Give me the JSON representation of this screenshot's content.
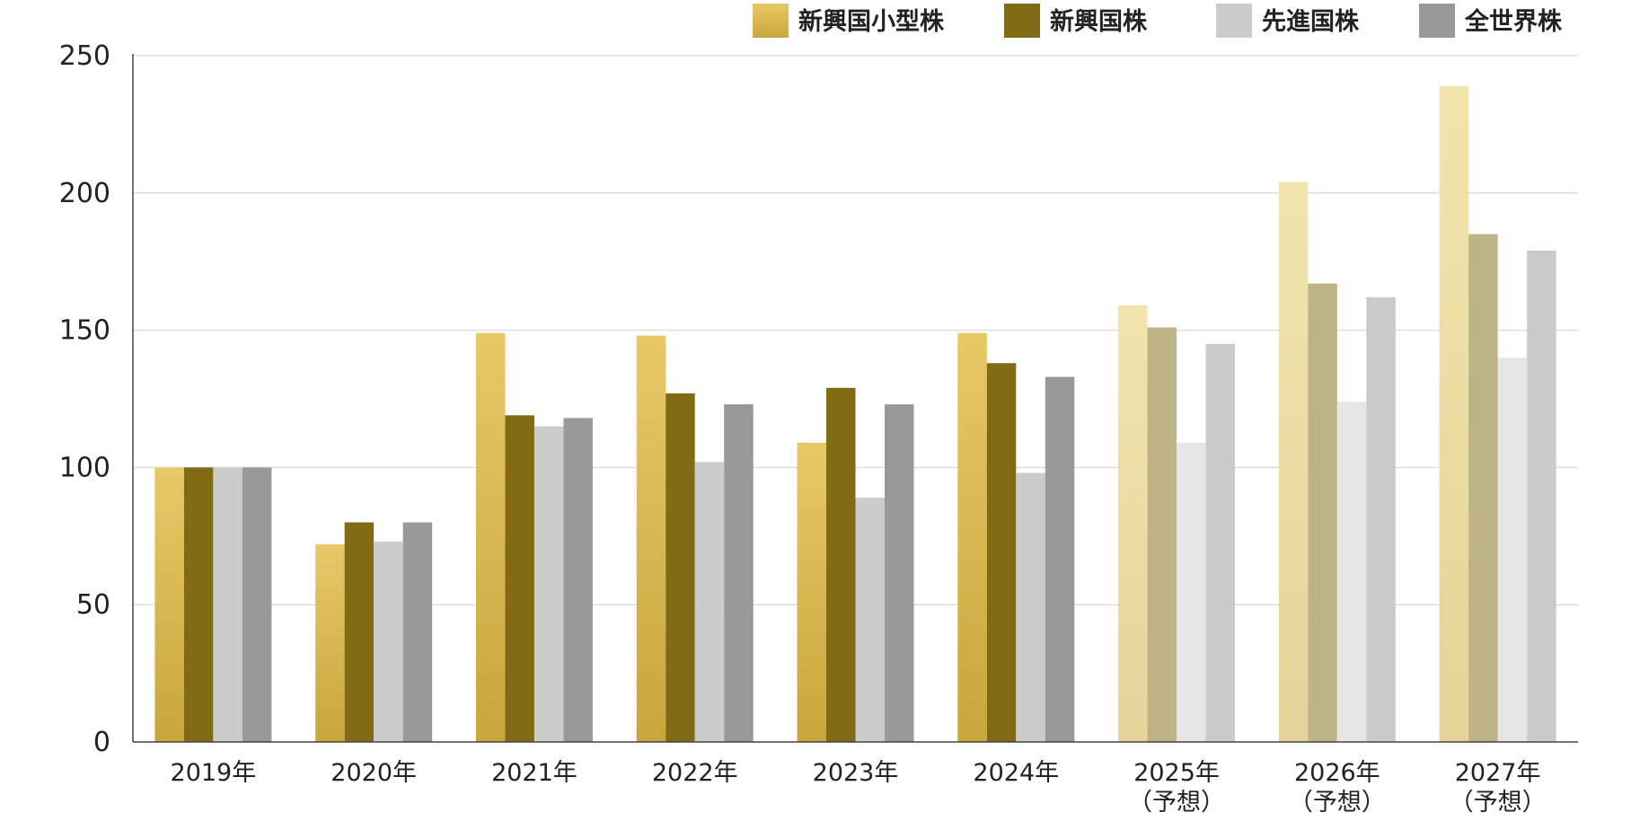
{
  "chart_data": {
    "type": "bar",
    "categories": [
      [
        "2019年"
      ],
      [
        "2020年"
      ],
      [
        "2021年"
      ],
      [
        "2022年"
      ],
      [
        "2023年"
      ],
      [
        "2024年"
      ],
      [
        "2025年",
        "（予想）"
      ],
      [
        "2026年",
        "（予想）"
      ],
      [
        "2027年",
        "（予想）"
      ]
    ],
    "series": [
      {
        "name": "新興国小型株",
        "color": "#d4b24a",
        "forecast_color": "#ecdca4",
        "values": [
          100,
          72,
          149,
          148,
          109,
          149,
          159,
          204,
          239
        ]
      },
      {
        "name": "新興国株",
        "color": "#806a13",
        "forecast_color": "#bdb385",
        "values": [
          100,
          80,
          119,
          127,
          129,
          138,
          151,
          167,
          185
        ]
      },
      {
        "name": "先進国株",
        "color": "#cccccc",
        "forecast_color": "#e6e6e6",
        "values": [
          100,
          73,
          115,
          102,
          89,
          98,
          109,
          124,
          140
        ]
      },
      {
        "name": "全世界株",
        "color": "#999999",
        "forecast_color": "#cacaca",
        "values": [
          100,
          80,
          118,
          123,
          123,
          133,
          145,
          162,
          179
        ]
      }
    ],
    "forecast_start_index": 6,
    "title": "",
    "xlabel": "",
    "ylabel": "",
    "ylim": [
      0,
      250
    ],
    "yticks": [
      0,
      50,
      100,
      150,
      200,
      250
    ],
    "grid": true,
    "legend_position": "top-right"
  }
}
